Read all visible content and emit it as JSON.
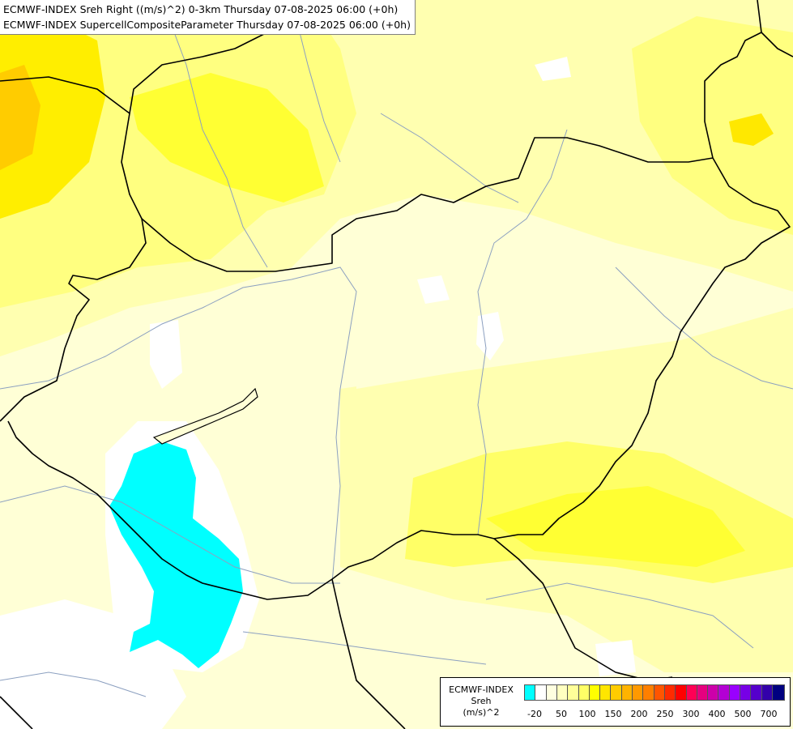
{
  "titles": {
    "line1": "ECMWF-INDEX Sreh Right ((m/s)^2) 0-3km Thursday 07-08-2025 06:00 (+0h)",
    "line2": "ECMWF-INDEX SupercellCompositeParameter Thursday 07-08-2025 06:00 (+0h)"
  },
  "legend": {
    "title": [
      "ECMWF-INDEX",
      "Sreh",
      "(m/s)^2"
    ],
    "swatch_colors": [
      "#00ffff",
      "#ffffff",
      "#ffffe0",
      "#ffffc0",
      "#ffff99",
      "#ffff66",
      "#ffff00",
      "#ffe600",
      "#ffcc00",
      "#ffb300",
      "#ff9900",
      "#ff7f00",
      "#ff5500",
      "#ff2a00",
      "#ff0000",
      "#ff0055",
      "#e6007f",
      "#cc00aa",
      "#b300d4",
      "#9900ff",
      "#7700e6",
      "#5500cc",
      "#3300aa",
      "#000080"
    ],
    "tick_labels": [
      "-20",
      "50",
      "100",
      "150",
      "200",
      "250",
      "300",
      "400",
      "500",
      "700"
    ]
  },
  "colors": {
    "pale": "#ffffd6",
    "light_yellow": "#ffffb0",
    "yellow": "#ffff80",
    "bright_yellow": "#ffff33",
    "gold": "#ffe800",
    "orange": "#ffcc00",
    "cyan": "#00ffff",
    "white": "#ffffff",
    "border": "#000000",
    "river": "#8ca0c0"
  }
}
